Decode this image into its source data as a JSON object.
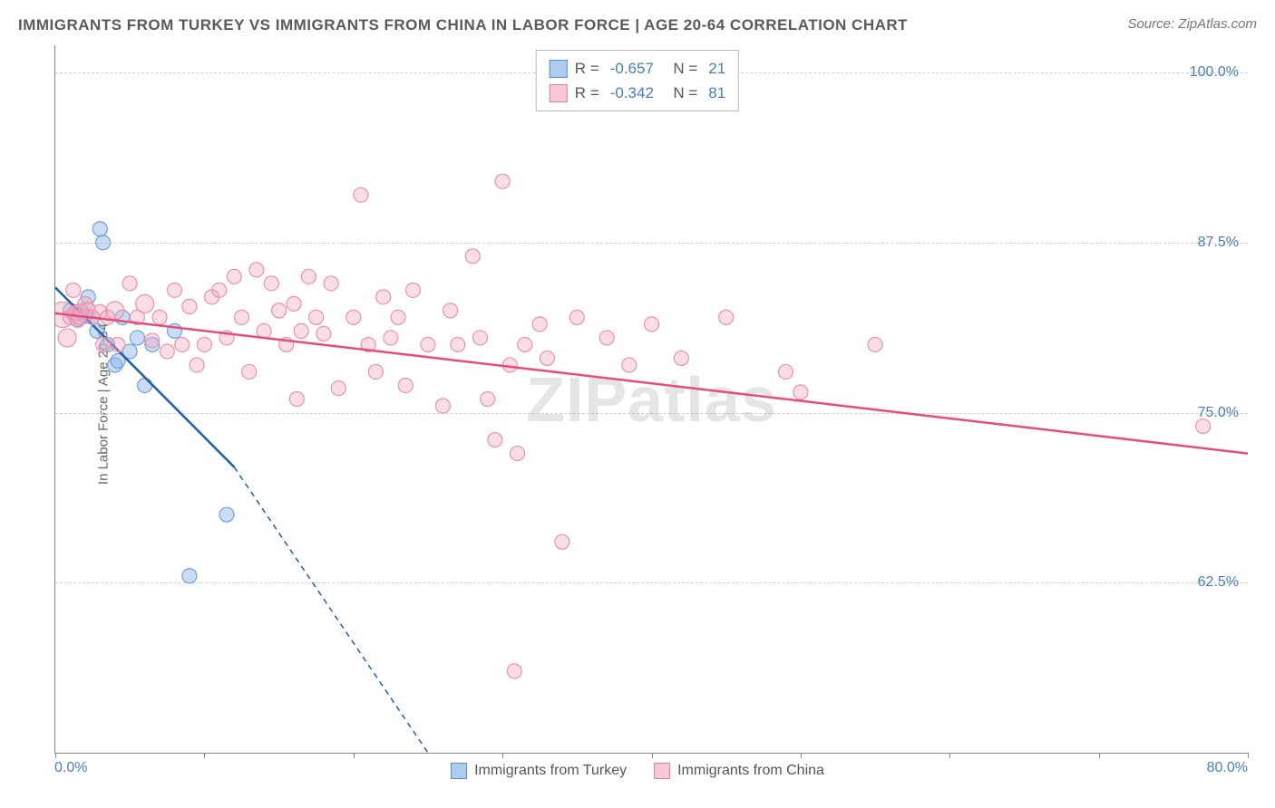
{
  "title": "IMMIGRANTS FROM TURKEY VS IMMIGRANTS FROM CHINA IN LABOR FORCE | AGE 20-64 CORRELATION CHART",
  "source": "Source: ZipAtlas.com",
  "watermark": "ZIPatlas",
  "ylabel": "In Labor Force | Age 20-64",
  "chart": {
    "type": "scatter",
    "xlim": [
      0,
      80
    ],
    "ylim": [
      50,
      102
    ],
    "xtick_start": "0.0%",
    "xtick_end": "80.0%",
    "xtick_positions": [
      0,
      10,
      20,
      30,
      40,
      50,
      60,
      70,
      80
    ],
    "ytick_labels": [
      "62.5%",
      "75.0%",
      "87.5%",
      "100.0%"
    ],
    "ytick_values": [
      62.5,
      75.0,
      87.5,
      100.0
    ],
    "grid_color": "#d0d0d0",
    "background_color": "#ffffff",
    "series": [
      {
        "name": "Immigrants from Turkey",
        "color_fill": "rgba(138,180,230,0.45)",
        "color_stroke": "#6ea0d8",
        "swatch_fill": "#aecdee",
        "swatch_border": "#5b8fc9",
        "line_color": "#1f5fa8",
        "marker_r": 8,
        "R": "-0.657",
        "N": "21",
        "trend": {
          "x1": 0,
          "y1": 84.2,
          "x2": 12,
          "y2": 71.0,
          "dash_to_x": 25,
          "dash_to_y": 50
        },
        "points": [
          {
            "x": 1.0,
            "y": 82.5,
            "r": 8
          },
          {
            "x": 1.3,
            "y": 82.3,
            "r": 8
          },
          {
            "x": 1.5,
            "y": 82.0,
            "r": 10
          },
          {
            "x": 1.8,
            "y": 82.4,
            "r": 8
          },
          {
            "x": 2.0,
            "y": 82.1,
            "r": 8
          },
          {
            "x": 2.2,
            "y": 83.5,
            "r": 8
          },
          {
            "x": 2.5,
            "y": 82.0,
            "r": 8
          },
          {
            "x": 2.8,
            "y": 81.0,
            "r": 8
          },
          {
            "x": 3.0,
            "y": 88.5,
            "r": 8
          },
          {
            "x": 3.2,
            "y": 87.5,
            "r": 8
          },
          {
            "x": 3.5,
            "y": 80.0,
            "r": 8
          },
          {
            "x": 4.0,
            "y": 78.5,
            "r": 8
          },
          {
            "x": 4.2,
            "y": 78.8,
            "r": 8
          },
          {
            "x": 4.5,
            "y": 82.0,
            "r": 8
          },
          {
            "x": 5.0,
            "y": 79.5,
            "r": 8
          },
          {
            "x": 5.5,
            "y": 80.5,
            "r": 8
          },
          {
            "x": 6.0,
            "y": 77.0,
            "r": 8
          },
          {
            "x": 6.5,
            "y": 80.0,
            "r": 8
          },
          {
            "x": 8.0,
            "y": 81.0,
            "r": 8
          },
          {
            "x": 9.0,
            "y": 63.0,
            "r": 8
          },
          {
            "x": 11.5,
            "y": 67.5,
            "r": 8
          }
        ]
      },
      {
        "name": "Immigrants from China",
        "color_fill": "rgba(245,170,195,0.40)",
        "color_stroke": "#e891ad",
        "swatch_fill": "#f7c7d5",
        "swatch_border": "#e87ca0",
        "line_color": "#e64b7a",
        "marker_r": 8,
        "R": "-0.342",
        "N": "81",
        "trend": {
          "x1": 0,
          "y1": 82.3,
          "x2": 80,
          "y2": 72.0
        },
        "points": [
          {
            "x": 0.5,
            "y": 82.2,
            "r": 14
          },
          {
            "x": 0.8,
            "y": 80.5,
            "r": 10
          },
          {
            "x": 1.0,
            "y": 82.0,
            "r": 8
          },
          {
            "x": 1.2,
            "y": 84.0,
            "r": 8
          },
          {
            "x": 1.3,
            "y": 82.3,
            "r": 8
          },
          {
            "x": 1.5,
            "y": 81.8,
            "r": 8
          },
          {
            "x": 1.6,
            "y": 82.0,
            "r": 8
          },
          {
            "x": 1.7,
            "y": 82.5,
            "r": 8
          },
          {
            "x": 2.0,
            "y": 83.0,
            "r": 8
          },
          {
            "x": 2.2,
            "y": 82.6,
            "r": 8
          },
          {
            "x": 2.5,
            "y": 82.0,
            "r": 8
          },
          {
            "x": 3.0,
            "y": 82.4,
            "r": 8
          },
          {
            "x": 3.2,
            "y": 80.0,
            "r": 8
          },
          {
            "x": 3.5,
            "y": 82.0,
            "r": 8
          },
          {
            "x": 4.0,
            "y": 82.5,
            "r": 10
          },
          {
            "x": 4.2,
            "y": 80.0,
            "r": 8
          },
          {
            "x": 5.0,
            "y": 84.5,
            "r": 8
          },
          {
            "x": 5.5,
            "y": 82.0,
            "r": 8
          },
          {
            "x": 6.0,
            "y": 83.0,
            "r": 10
          },
          {
            "x": 6.5,
            "y": 80.3,
            "r": 8
          },
          {
            "x": 7.0,
            "y": 82.0,
            "r": 8
          },
          {
            "x": 7.5,
            "y": 79.5,
            "r": 8
          },
          {
            "x": 8.0,
            "y": 84.0,
            "r": 8
          },
          {
            "x": 8.5,
            "y": 80.0,
            "r": 8
          },
          {
            "x": 9.0,
            "y": 82.8,
            "r": 8
          },
          {
            "x": 9.5,
            "y": 78.5,
            "r": 8
          },
          {
            "x": 10.0,
            "y": 80.0,
            "r": 8
          },
          {
            "x": 10.5,
            "y": 83.5,
            "r": 8
          },
          {
            "x": 11.0,
            "y": 84.0,
            "r": 8
          },
          {
            "x": 11.5,
            "y": 80.5,
            "r": 8
          },
          {
            "x": 12.0,
            "y": 85.0,
            "r": 8
          },
          {
            "x": 12.5,
            "y": 82.0,
            "r": 8
          },
          {
            "x": 13.0,
            "y": 78.0,
            "r": 8
          },
          {
            "x": 13.5,
            "y": 85.5,
            "r": 8
          },
          {
            "x": 14.0,
            "y": 81.0,
            "r": 8
          },
          {
            "x": 14.5,
            "y": 84.5,
            "r": 8
          },
          {
            "x": 15.0,
            "y": 82.5,
            "r": 8
          },
          {
            "x": 15.5,
            "y": 80.0,
            "r": 8
          },
          {
            "x": 16.0,
            "y": 83.0,
            "r": 8
          },
          {
            "x": 16.2,
            "y": 76.0,
            "r": 8
          },
          {
            "x": 16.5,
            "y": 81.0,
            "r": 8
          },
          {
            "x": 17.0,
            "y": 85.0,
            "r": 8
          },
          {
            "x": 17.5,
            "y": 82.0,
            "r": 8
          },
          {
            "x": 18.0,
            "y": 80.8,
            "r": 8
          },
          {
            "x": 18.5,
            "y": 84.5,
            "r": 8
          },
          {
            "x": 19.0,
            "y": 76.8,
            "r": 8
          },
          {
            "x": 20.0,
            "y": 82.0,
            "r": 8
          },
          {
            "x": 20.5,
            "y": 91.0,
            "r": 8
          },
          {
            "x": 21.0,
            "y": 80.0,
            "r": 8
          },
          {
            "x": 21.5,
            "y": 78.0,
            "r": 8
          },
          {
            "x": 22.0,
            "y": 83.5,
            "r": 8
          },
          {
            "x": 22.5,
            "y": 80.5,
            "r": 8
          },
          {
            "x": 23.0,
            "y": 82.0,
            "r": 8
          },
          {
            "x": 23.5,
            "y": 77.0,
            "r": 8
          },
          {
            "x": 24.0,
            "y": 84.0,
            "r": 8
          },
          {
            "x": 25.0,
            "y": 80.0,
            "r": 8
          },
          {
            "x": 26.0,
            "y": 75.5,
            "r": 8
          },
          {
            "x": 26.5,
            "y": 82.5,
            "r": 8
          },
          {
            "x": 27.0,
            "y": 80.0,
            "r": 8
          },
          {
            "x": 28.0,
            "y": 86.5,
            "r": 8
          },
          {
            "x": 28.5,
            "y": 80.5,
            "r": 8
          },
          {
            "x": 29.0,
            "y": 76.0,
            "r": 8
          },
          {
            "x": 29.5,
            "y": 73.0,
            "r": 8
          },
          {
            "x": 30.0,
            "y": 92.0,
            "r": 8
          },
          {
            "x": 30.5,
            "y": 78.5,
            "r": 8
          },
          {
            "x": 30.8,
            "y": 56.0,
            "r": 8
          },
          {
            "x": 31.0,
            "y": 72.0,
            "r": 8
          },
          {
            "x": 31.5,
            "y": 80.0,
            "r": 8
          },
          {
            "x": 32.5,
            "y": 81.5,
            "r": 8
          },
          {
            "x": 33.0,
            "y": 79.0,
            "r": 8
          },
          {
            "x": 34.0,
            "y": 65.5,
            "r": 8
          },
          {
            "x": 35.0,
            "y": 82.0,
            "r": 8
          },
          {
            "x": 37.0,
            "y": 80.5,
            "r": 8
          },
          {
            "x": 38.5,
            "y": 78.5,
            "r": 8
          },
          {
            "x": 40.0,
            "y": 81.5,
            "r": 8
          },
          {
            "x": 42.0,
            "y": 79.0,
            "r": 8
          },
          {
            "x": 45.0,
            "y": 82.0,
            "r": 8
          },
          {
            "x": 49.0,
            "y": 78.0,
            "r": 8
          },
          {
            "x": 50.0,
            "y": 76.5,
            "r": 8
          },
          {
            "x": 55.0,
            "y": 80.0,
            "r": 8
          },
          {
            "x": 77.0,
            "y": 74.0,
            "r": 8
          }
        ]
      }
    ]
  },
  "legend_bottom": [
    {
      "label": "Immigrants from Turkey"
    },
    {
      "label": "Immigrants from China"
    }
  ]
}
